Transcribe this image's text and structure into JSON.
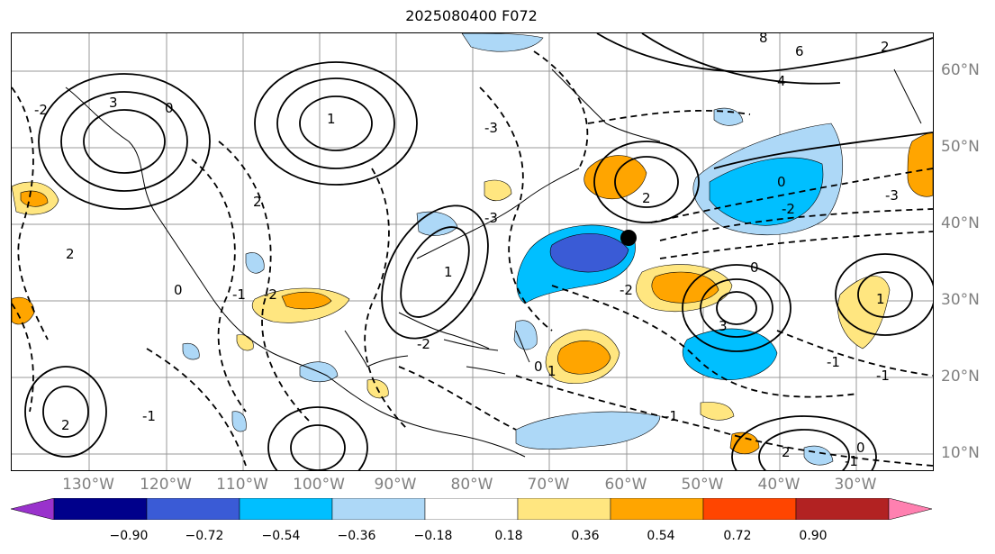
{
  "title": "2025080400 F072",
  "lon_labels": [
    "130°W",
    "120°W",
    "110°W",
    "100°W",
    "90°W",
    "80°W",
    "70°W",
    "60°W",
    "50°W",
    "40°W",
    "30°W"
  ],
  "lat_labels": [
    "60°N",
    "50°N",
    "40°N",
    "30°N",
    "20°N",
    "10°N"
  ],
  "colorbar": {
    "colors": [
      "#9932cc",
      "#00008b",
      "#3a5bd6",
      "#00bfff",
      "#add8f7",
      "#ffffff",
      "#ffe680",
      "#ffa500",
      "#ff4500",
      "#b22222",
      "#ff80b0"
    ],
    "ticks": [
      "−0.90",
      "−0.72",
      "−0.54",
      "−0.36",
      "−0.18",
      "0.18",
      "0.36",
      "0.54",
      "0.72",
      "0.90"
    ]
  },
  "marker": {
    "label": "point-marker"
  },
  "contour_labels": [
    "3",
    "0",
    "1",
    "2",
    "-1",
    "-2",
    "-3",
    "6",
    "8",
    "4",
    "2",
    "0",
    "-2",
    "-1",
    "3",
    "-3",
    "1",
    "2",
    "0",
    "-1",
    "-2",
    "1",
    "0",
    "2",
    "-1",
    "-2",
    "-3",
    "2",
    "0",
    "-1",
    "1",
    "2",
    "-2",
    "0",
    "-1"
  ]
}
